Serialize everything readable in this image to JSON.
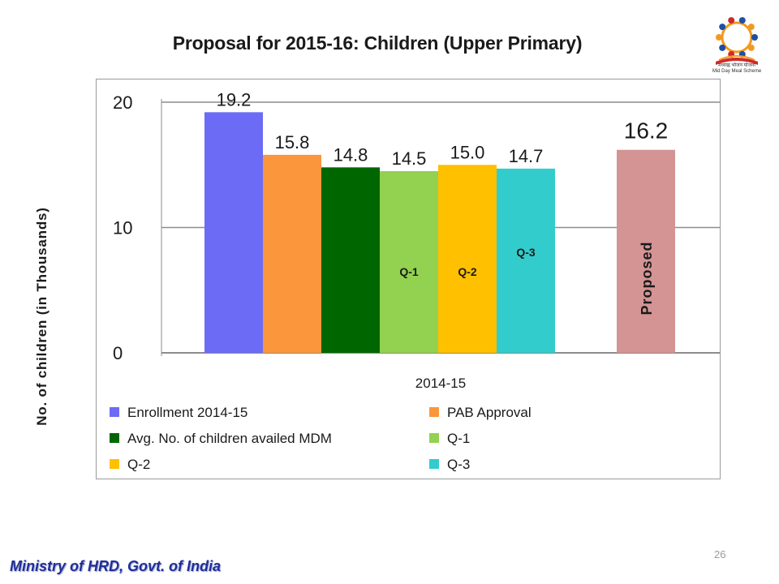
{
  "title": "Proposal for 2015-16: Children (Upper Primary)",
  "y_axis_label": "No. of children (in Thousands)",
  "footer": "Ministry of HRD, Govt. of India",
  "page_number": "26",
  "logo": {
    "icon": "mid-day-meal-scheme-logo",
    "caption_line1": "मध्याह्न भोजन योजना",
    "caption_line2": "Mid Day Meal Scheme"
  },
  "chart_data": {
    "type": "bar",
    "x_group_label": "2014-15",
    "ylim": [
      0,
      20
    ],
    "yticks": [
      "0",
      "10",
      "20"
    ],
    "grid": true,
    "legend_position": "bottom",
    "series": [
      {
        "name": "Enrollment 2014-15",
        "value": 19.2,
        "label": "19.2",
        "color": "#6b6bf5",
        "group": "2014-15"
      },
      {
        "name": "PAB Approval",
        "value": 15.8,
        "label": "15.8",
        "color": "#fb963d",
        "group": "2014-15"
      },
      {
        "name": "Avg. No. of children availed MDM",
        "value": 14.8,
        "label": "14.8",
        "color": "#006600",
        "group": "2014-15"
      },
      {
        "name": "Q-1",
        "value": 14.5,
        "label": "14.5",
        "color": "#93d150",
        "group": "2014-15",
        "inner_label": "Q-1"
      },
      {
        "name": "Q-2",
        "value": 15.0,
        "label": "15.0",
        "color": "#ffc000",
        "group": "2014-15",
        "inner_label": "Q-2"
      },
      {
        "name": "Q-3",
        "value": 14.7,
        "label": "14.7",
        "color": "#33cccc",
        "group": "2014-15",
        "inner_label": "Q-3"
      }
    ],
    "proposed": {
      "value": 16.2,
      "label": "16.2",
      "color": "#d49494",
      "inner_label": "Proposed"
    }
  }
}
